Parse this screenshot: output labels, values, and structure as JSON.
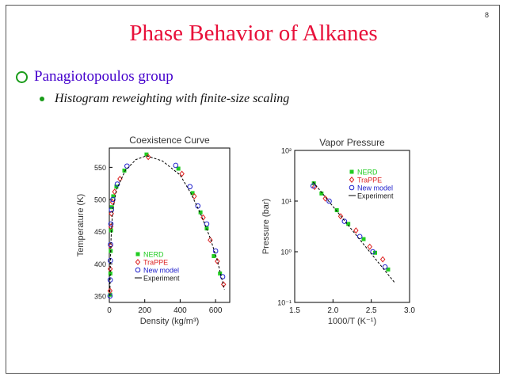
{
  "slide": {
    "number": "8",
    "title": "Phase Behavior of Alkanes",
    "bullet1": "Panagiotopoulos group",
    "bullet2": "Histogram reweighting with finite-size scaling"
  },
  "colors": {
    "title": "#e8103a",
    "bullet": "#4400cc",
    "nerd": "#22cc22",
    "trappe": "#dd2222",
    "new_model": "#2222cc",
    "experiment": "#000000"
  },
  "chart_data": [
    {
      "type": "scatter",
      "title": "Coexistence Curve",
      "xlabel": "Density (kg/m³)",
      "ylabel": "Temperature (K)",
      "xlim": [
        0,
        680
      ],
      "ylim": [
        340,
        580
      ],
      "xticks": [
        0,
        200,
        400,
        600
      ],
      "yticks": [
        350,
        400,
        450,
        500,
        550
      ],
      "xtick_labels": [
        "0",
        "200",
        "400",
        "600"
      ],
      "ytick_labels": [
        "350",
        "400",
        "450",
        "500",
        "550"
      ],
      "legend": [
        "NERD",
        "TraPPE",
        "New model",
        "Experiment"
      ],
      "series": [
        {
          "name": "NERD",
          "marker": "square",
          "points": [
            [
              5,
              352
            ],
            [
              6,
              385
            ],
            [
              8,
              420
            ],
            [
              10,
              452
            ],
            [
              14,
              488
            ],
            [
              22,
              505
            ],
            [
              40,
              520
            ],
            [
              85,
              545
            ],
            [
              210,
              570
            ],
            [
              390,
              548
            ],
            [
              470,
              510
            ],
            [
              515,
              480
            ],
            [
              550,
              455
            ],
            [
              590,
              412
            ],
            [
              625,
              385
            ]
          ]
        },
        {
          "name": "TraPPE",
          "marker": "diamond",
          "points": [
            [
              4,
              358
            ],
            [
              5,
              392
            ],
            [
              7,
              428
            ],
            [
              9,
              458
            ],
            [
              12,
              478
            ],
            [
              18,
              496
            ],
            [
              30,
              512
            ],
            [
              60,
              532
            ],
            [
              220,
              566
            ],
            [
              410,
              540
            ],
            [
              480,
              505
            ],
            [
              530,
              472
            ],
            [
              570,
              437
            ],
            [
              610,
              404
            ],
            [
              645,
              368
            ]
          ]
        },
        {
          "name": "New model",
          "marker": "circle",
          "points": [
            [
              4,
              350
            ],
            [
              5,
              375
            ],
            [
              6,
              405
            ],
            [
              7,
              430
            ],
            [
              9,
              462
            ],
            [
              12,
              484
            ],
            [
              20,
              500
            ],
            [
              45,
              524
            ],
            [
              100,
              552
            ],
            [
              375,
              553
            ],
            [
              455,
              520
            ],
            [
              500,
              490
            ],
            [
              550,
              462
            ],
            [
              600,
              420
            ],
            [
              640,
              380
            ]
          ]
        },
        {
          "name": "Experiment",
          "marker": "line",
          "points": [
            [
              3,
              350
            ],
            [
              6,
              400
            ],
            [
              10,
              440
            ],
            [
              18,
              480
            ],
            [
              40,
              515
            ],
            [
              90,
              545
            ],
            [
              150,
              562
            ],
            [
              210,
              568
            ],
            [
              300,
              560
            ],
            [
              400,
              538
            ],
            [
              460,
              510
            ],
            [
              520,
              475
            ],
            [
              570,
              440
            ],
            [
              610,
              405
            ],
            [
              650,
              360
            ]
          ]
        }
      ]
    },
    {
      "type": "scatter",
      "title": "Vapor Pressure",
      "xlabel": "1000/T (K⁻¹)",
      "ylabel": "Pressure (bar)",
      "xlim": [
        1.5,
        3.0
      ],
      "ylim": [
        -1,
        2
      ],
      "y_scale": "log10",
      "xticks": [
        1.5,
        2.0,
        2.5,
        3.0
      ],
      "xtick_labels": [
        "1.5",
        "2.0",
        "2.5",
        "3.0"
      ],
      "yticks": [
        -1,
        0,
        1,
        2
      ],
      "ytick_labels": [
        "10⁻¹",
        "10⁰",
        "10¹",
        "10²"
      ],
      "legend": [
        "NERD",
        "TraPPE",
        "New model",
        "Experiment"
      ],
      "series": [
        {
          "name": "NERD",
          "marker": "square",
          "points": [
            [
              1.75,
              1.35
            ],
            [
              1.85,
              1.15
            ],
            [
              2.05,
              0.82
            ],
            [
              2.2,
              0.55
            ],
            [
              2.4,
              0.25
            ],
            [
              2.55,
              -0.02
            ],
            [
              2.72,
              -0.35
            ]
          ]
        },
        {
          "name": "TraPPE",
          "marker": "diamond",
          "points": [
            [
              1.76,
              1.28
            ],
            [
              1.9,
              1.05
            ],
            [
              2.1,
              0.7
            ],
            [
              2.3,
              0.42
            ],
            [
              2.48,
              0.1
            ],
            [
              2.65,
              -0.15
            ]
          ]
        },
        {
          "name": "New model",
          "marker": "circle",
          "points": [
            [
              1.74,
              1.3
            ],
            [
              1.95,
              1.0
            ],
            [
              2.15,
              0.6
            ],
            [
              2.35,
              0.3
            ],
            [
              2.52,
              0.0
            ],
            [
              2.68,
              -0.3
            ]
          ]
        },
        {
          "name": "Experiment",
          "marker": "line",
          "points": [
            [
              1.74,
              1.38
            ],
            [
              2.8,
              -0.6
            ]
          ]
        }
      ]
    }
  ]
}
